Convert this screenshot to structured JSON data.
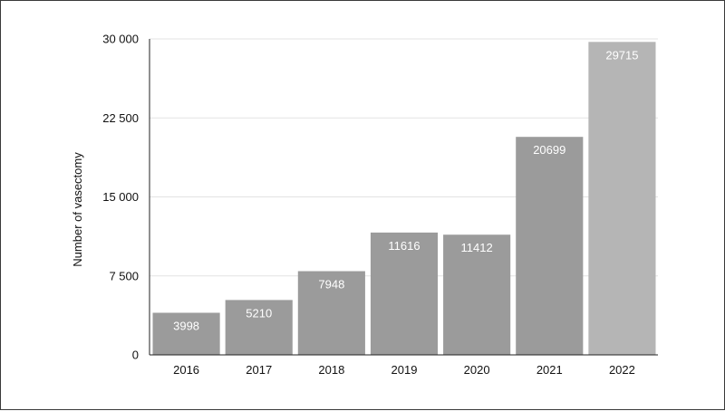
{
  "chart_data": {
    "type": "bar",
    "categories": [
      "2016",
      "2017",
      "2018",
      "2019",
      "2020",
      "2021",
      "2022"
    ],
    "values": [
      3998,
      5210,
      7948,
      11616,
      11412,
      20699,
      29715
    ],
    "data_labels": [
      "3998",
      "5210",
      "7948",
      "11616",
      "11412",
      "20699",
      "29715"
    ],
    "title": "",
    "xlabel": "",
    "ylabel": "Number of vasectomy",
    "ylim": [
      0,
      30000
    ],
    "yticks": [
      0,
      7500,
      15000,
      22500,
      30000
    ],
    "ytick_labels": [
      "0",
      "7 500",
      "15 000",
      "22 500",
      "30 000"
    ],
    "grid": "horizontal",
    "legend": "none",
    "colors": {
      "bar": "#9b9b9b",
      "bar_highlight": "#b5b5b5",
      "grid": "#e3e3e3",
      "axis": "#222222"
    },
    "highlight_index": 6
  }
}
